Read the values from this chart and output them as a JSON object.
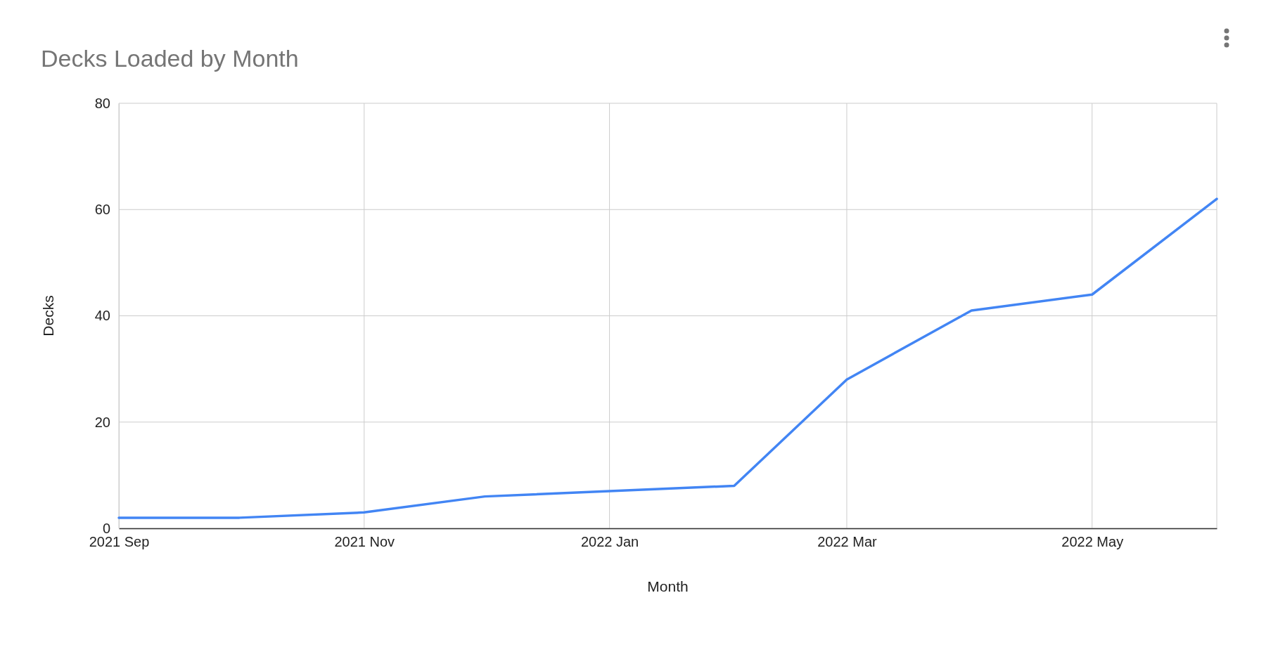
{
  "chart_data": {
    "type": "line",
    "title": "Decks Loaded by Month",
    "xlabel": "Month",
    "ylabel": "Decks",
    "x": [
      "2021-09",
      "2021-10",
      "2021-11",
      "2021-12",
      "2022-01",
      "2022-02",
      "2022-03",
      "2022-04",
      "2022-05",
      "2022-06"
    ],
    "series": [
      {
        "color": "#4285f4",
        "values": [
          2,
          2,
          3,
          6,
          7,
          8,
          28,
          41,
          44,
          62
        ]
      }
    ],
    "xlim": [
      "2021-09",
      "2022-06"
    ],
    "xticks": [
      {
        "value": "2021-09",
        "label": "2021 Sep"
      },
      {
        "value": "2021-11",
        "label": "2021 Nov"
      },
      {
        "value": "2022-01",
        "label": "2022 Jan"
      },
      {
        "value": "2022-03",
        "label": "2022 Mar"
      },
      {
        "value": "2022-05",
        "label": "2022 May"
      }
    ],
    "ylim": [
      0,
      80
    ],
    "yticks": [
      0,
      20,
      40,
      60,
      80
    ],
    "grid": true
  }
}
